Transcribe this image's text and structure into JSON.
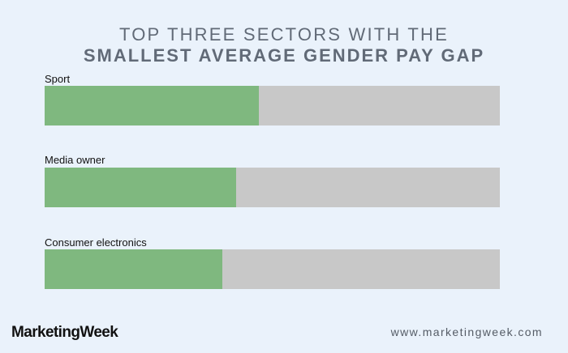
{
  "chart_data": {
    "type": "bar",
    "orientation": "horizontal",
    "title_line1": "TOP THREE SECTORS WITH THE",
    "title_line2": "SMALLEST AVERAGE GENDER PAY GAP",
    "categories": [
      "Sport",
      "Media owner",
      "Consumer electronics"
    ],
    "values": [
      0.47,
      0.42,
      0.39
    ],
    "value_unit": "fraction of full bar",
    "xlim": [
      0,
      1
    ],
    "grid": false,
    "colors": {
      "fill": "#7fb87f",
      "track": "#c8c8c8"
    }
  },
  "footer": {
    "brand": "MarketingWeek",
    "url": "www.marketingweek.com"
  }
}
